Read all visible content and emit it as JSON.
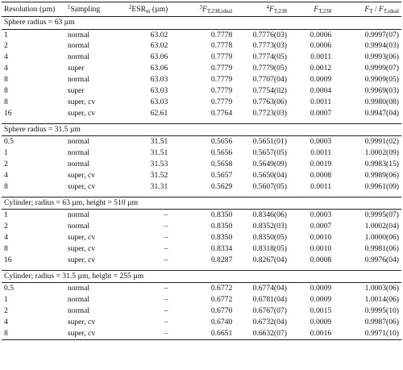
{
  "headers": [
    {
      "sup": "",
      "main": "Resolution (µm)",
      "sub": "",
      "post": ""
    },
    {
      "sup": "1",
      "main": "Sampling",
      "sub": "",
      "post": ""
    },
    {
      "sup": "2",
      "main": "ESR",
      "sub": "m",
      "post": " (µm)"
    },
    {
      "sup": "3",
      "main": "F",
      "sub": "T,238,ideal",
      "post": ""
    },
    {
      "sup": "4",
      "main": "F",
      "sub": "T,238",
      "post": ""
    },
    {
      "sup": "",
      "main": "F",
      "sub": "T,238",
      "post": ""
    },
    {
      "sup": "",
      "main": "F",
      "sub": "T",
      "post": " / ",
      "main2": "F",
      "sub2": "T,ideal"
    }
  ],
  "sections": [
    {
      "title": "Sphere radius = 63 µm",
      "rows": [
        [
          "1",
          "normal",
          "63.02",
          "0.7778",
          "0.7776(03)",
          "0.0006",
          "0.9997(07)"
        ],
        [
          "2",
          "normal",
          "63.02",
          "0.7778",
          "0.7773(03)",
          "0.0006",
          "0.9994(03)"
        ],
        [
          "4",
          "normal",
          "63.06",
          "0.7779",
          "0.7774(05)",
          "0.0011",
          "0.9993(06)"
        ],
        [
          "4",
          "super",
          "63.06",
          "0.7779",
          "0.7779(05)",
          "0.0012",
          "0.9999(07)"
        ],
        [
          "8",
          "normal",
          "63.03",
          "0.7779",
          "0.7707(04)",
          "0.0009",
          "0.9909(05)"
        ],
        [
          "8",
          "super",
          "63.03",
          "0.7779",
          "0.7754(02)",
          "0.0004",
          "0.9969(03)"
        ],
        [
          "8",
          "super, cv",
          "63.03",
          "0.7779",
          "0.7763(06)",
          "0.0011",
          "0.9980(08)"
        ],
        [
          "16",
          "super, cv",
          "62.61",
          "0.7764",
          "0.7723(03)",
          "0.0007",
          "0.9947(04)"
        ]
      ]
    },
    {
      "title": "Sphere radius = 31.5 µm",
      "rows": [
        [
          "0.5",
          "normal",
          "31.51",
          "0.5656",
          "0.5651(01)",
          "0.0003",
          "0.9991(02)"
        ],
        [
          "1",
          "normal",
          "31.51",
          "0.5656",
          "0.5657(05)",
          "0.0011",
          "1.0002(09)"
        ],
        [
          "2",
          "normal",
          "31.53",
          "0.5658",
          "0.5649(09)",
          "0.0019",
          "0.9983(15)"
        ],
        [
          "4",
          "super, cv",
          "31.52",
          "0.5657",
          "0.5650(04)",
          "0.0008",
          "0.9989(06)"
        ],
        [
          "8",
          "super, cv",
          "31.31",
          "0.5629",
          "0.5607(05)",
          "0.0011",
          "0.9961(09)"
        ]
      ]
    },
    {
      "title": "Cylinder; radius = 63 µm, height = 510 µm",
      "rows": [
        [
          "1",
          "normal",
          "–",
          "0.8350",
          "0.8346(06)",
          "0.0003",
          "0.9995(07)"
        ],
        [
          "2",
          "normal",
          "–",
          "0.8350",
          "0.8352(03)",
          "0.0007",
          "1.0002(04)"
        ],
        [
          "4",
          "super, cv",
          "–",
          "0.8350",
          "0.8350(05)",
          "0.0010",
          "1.0000(06)"
        ],
        [
          "8",
          "super, cv",
          "–",
          "0.8334",
          "0.8318(05)",
          "0.0010",
          "0.9981(06)"
        ],
        [
          "16",
          "super, cv",
          "–",
          "0.8287",
          "0.8267(04)",
          "0.0008",
          "0.9976(04)"
        ]
      ]
    },
    {
      "title": "Cylinder; radius = 31.5 µm, height = 255 µm",
      "rows": [
        [
          "0.5",
          "normal",
          "–",
          "0.6772",
          "0.6774(04)",
          "0.0009",
          "1.0003(06)"
        ],
        [
          "1",
          "normal",
          "–",
          "0.6772",
          "0.6781(04)",
          "0.0009",
          "1.0014(06)"
        ],
        [
          "2",
          "normal",
          "–",
          "0.6770",
          "0.6767(07)",
          "0.0015",
          "0.9995(10)"
        ],
        [
          "4",
          "super, cv",
          "–",
          "0.6740",
          "0.6732(04)",
          "0.0009",
          "0.9987(06)"
        ],
        [
          "8",
          "super, cv",
          "–",
          "0.6651",
          "0.6632(07)",
          "0.0016",
          "0.9971(10)"
        ]
      ]
    }
  ]
}
